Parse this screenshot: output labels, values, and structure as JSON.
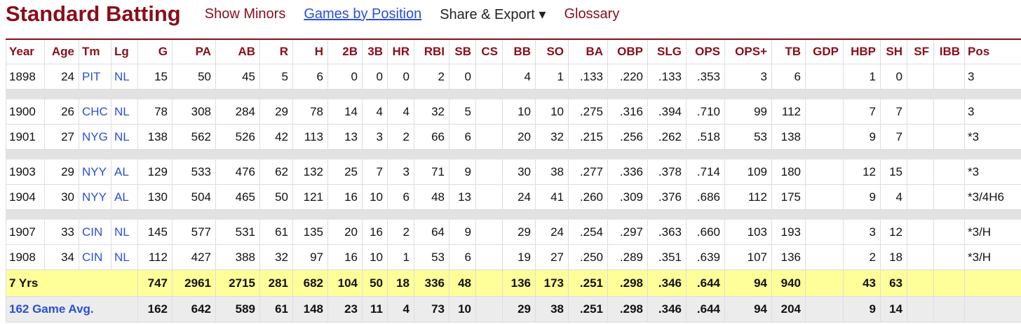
{
  "header": {
    "title": "Standard Batting",
    "links": [
      "Show Minors",
      "Games by Position",
      "Share & Export ▾",
      "Glossary"
    ]
  },
  "table": {
    "columns": [
      "Year",
      "Age",
      "Tm",
      "Lg",
      "G",
      "PA",
      "AB",
      "R",
      "H",
      "2B",
      "3B",
      "HR",
      "RBI",
      "SB",
      "CS",
      "BB",
      "SO",
      "BA",
      "OBP",
      "SLG",
      "OPS",
      "OPS+",
      "TB",
      "GDP",
      "HBP",
      "SH",
      "SF",
      "IBB",
      "Pos"
    ],
    "groups": [
      [
        [
          1898,
          24,
          "PIT",
          "NL",
          15,
          50,
          45,
          5,
          6,
          0,
          0,
          0,
          2,
          0,
          null,
          4,
          1,
          ".133",
          ".220",
          ".133",
          ".353",
          3,
          6,
          null,
          1,
          0,
          null,
          null,
          "3"
        ]
      ],
      [
        [
          1900,
          26,
          "CHC",
          "NL",
          78,
          308,
          284,
          29,
          78,
          14,
          4,
          4,
          32,
          5,
          null,
          10,
          10,
          ".275",
          ".316",
          ".394",
          ".710",
          99,
          112,
          null,
          7,
          7,
          null,
          null,
          "3"
        ],
        [
          1901,
          27,
          "NYG",
          "NL",
          138,
          562,
          526,
          42,
          113,
          13,
          3,
          2,
          66,
          6,
          null,
          20,
          32,
          ".215",
          ".256",
          ".262",
          ".518",
          53,
          138,
          null,
          9,
          7,
          null,
          null,
          "*3"
        ]
      ],
      [
        [
          1903,
          29,
          "NYY",
          "AL",
          129,
          533,
          476,
          62,
          132,
          25,
          7,
          3,
          71,
          9,
          null,
          30,
          38,
          ".277",
          ".336",
          ".378",
          ".714",
          109,
          180,
          null,
          12,
          15,
          null,
          null,
          "*3"
        ],
        [
          1904,
          30,
          "NYY",
          "AL",
          130,
          504,
          465,
          50,
          121,
          16,
          10,
          6,
          48,
          13,
          null,
          24,
          41,
          ".260",
          ".309",
          ".376",
          ".686",
          112,
          175,
          null,
          9,
          4,
          null,
          null,
          "*3/4H6"
        ]
      ],
      [
        [
          1907,
          33,
          "CIN",
          "NL",
          145,
          577,
          531,
          61,
          135,
          20,
          16,
          2,
          64,
          9,
          null,
          29,
          24,
          ".254",
          ".297",
          ".363",
          ".660",
          103,
          193,
          null,
          3,
          12,
          null,
          null,
          "*3/H"
        ],
        [
          1908,
          34,
          "CIN",
          "NL",
          112,
          427,
          388,
          32,
          97,
          16,
          10,
          1,
          53,
          6,
          null,
          19,
          27,
          ".250",
          ".289",
          ".351",
          ".639",
          107,
          136,
          null,
          2,
          18,
          null,
          null,
          "*3/H"
        ]
      ]
    ],
    "footer": [
      {
        "label": "7 Yrs",
        "cells": [
          747,
          2961,
          2715,
          281,
          682,
          104,
          50,
          18,
          336,
          48,
          null,
          136,
          173,
          ".251",
          ".298",
          ".346",
          ".644",
          94,
          940,
          null,
          43,
          63,
          null,
          null,
          null
        ]
      },
      {
        "label": "162 Game Avg.",
        "cells": [
          162,
          642,
          589,
          61,
          148,
          23,
          11,
          4,
          73,
          10,
          null,
          29,
          38,
          ".251",
          ".298",
          ".346",
          ".644",
          94,
          204,
          null,
          9,
          14,
          null,
          null,
          null
        ]
      }
    ]
  }
}
